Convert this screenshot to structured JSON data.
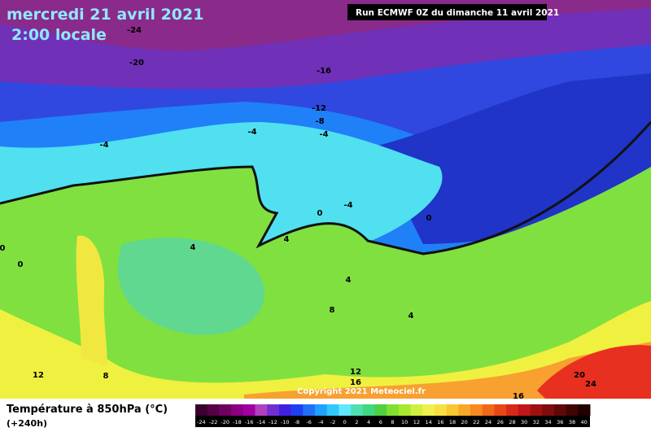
{
  "header": {
    "date": "mercredi 21 avril 2021",
    "time": "2:00 locale"
  },
  "run": "Run ECMWF 0Z du dimanche 11 avril 2021",
  "copyright": "Copyright 2021 Meteociel.fr",
  "legend": {
    "title": "Température à 850hPa (°C)",
    "subtitle": "(+240h)",
    "ticks": [
      -24,
      -22,
      -20,
      -18,
      -16,
      -14,
      -12,
      -10,
      -8,
      -6,
      -4,
      -2,
      0,
      2,
      4,
      6,
      8,
      10,
      12,
      14,
      16,
      18,
      20,
      22,
      24,
      26,
      28,
      30,
      32,
      34,
      36,
      38,
      40
    ],
    "colors": [
      "#3a0030",
      "#560046",
      "#700060",
      "#8a0080",
      "#a000a0",
      "#b040c0",
      "#7030d0",
      "#4020e0",
      "#2040f0",
      "#2070f8",
      "#20a0ff",
      "#30c8ff",
      "#60e8ff",
      "#50e0b0",
      "#40d880",
      "#50d040",
      "#80e030",
      "#a8e830",
      "#d0f040",
      "#f0f050",
      "#f8e040",
      "#f8c830",
      "#f8a828",
      "#f88820",
      "#f06818",
      "#e84818",
      "#d82818",
      "#c01818",
      "#a01010",
      "#800c0c",
      "#600808",
      "#400404",
      "#200000"
    ]
  },
  "contour_labels": [
    "-24",
    "-20",
    "-16",
    "-12",
    "-8",
    "-4",
    "-4",
    "-4",
    "-4",
    "0",
    "0",
    "0",
    "0",
    "4",
    "4",
    "4",
    "4",
    "8",
    "8",
    "12",
    "12",
    "16",
    "16",
    "20",
    "24"
  ]
}
